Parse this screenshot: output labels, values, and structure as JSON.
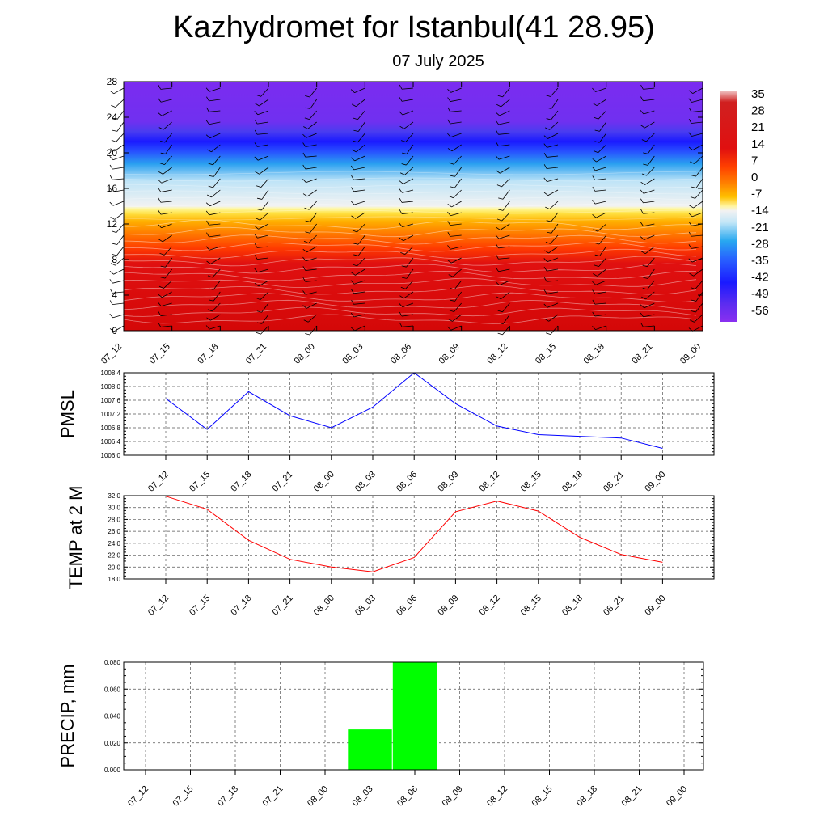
{
  "title": "Kazhydromet for Istanbul(41 28.95)",
  "subtitle": "07 July 2025",
  "time_labels": [
    "07_12",
    "07_15",
    "07_18",
    "07_21",
    "08_00",
    "08_03",
    "08_06",
    "08_09",
    "08_12",
    "08_15",
    "08_18",
    "08_21",
    "09_00"
  ],
  "colors": {
    "pmsl_line": "#0000ff",
    "temp_line": "#ff0000",
    "precip_bar": "#00ff00",
    "upper_air": "#7b2cf0",
    "cold_blue": "#1a1aff",
    "warm_red": "#e01010"
  },
  "chart_data": [
    {
      "type": "heatmap",
      "name": "cross-section",
      "yticks": [
        0,
        4,
        8,
        12,
        16,
        20,
        24,
        28
      ],
      "ylim": [
        0,
        28
      ],
      "wind_barbs": true,
      "colorbar": {
        "labels": [
          "35",
          "28",
          "21",
          "14",
          "7",
          "0",
          "-7",
          "-14",
          "-21",
          "-28",
          "-35",
          "-42",
          "-49",
          "-56"
        ],
        "placement": "right"
      }
    },
    {
      "type": "line",
      "ylabel": "PMSL",
      "categories": [
        "07_12",
        "07_15",
        "07_18",
        "07_21",
        "08_00",
        "08_03",
        "08_06",
        "08_09",
        "08_12",
        "08_15",
        "08_18",
        "08_21",
        "09_00"
      ],
      "values": [
        1007.65,
        1006.75,
        1007.85,
        1007.15,
        1006.8,
        1007.4,
        1008.4,
        1007.5,
        1006.85,
        1006.6,
        1006.55,
        1006.5,
        1006.2
      ],
      "ylim": [
        1006.0,
        1008.4
      ],
      "yticks": [
        "1006.0",
        "1006.4",
        "1006.8",
        "1007.2",
        "1007.6",
        "1008.0",
        "1008.4"
      ],
      "grid": true
    },
    {
      "type": "line",
      "ylabel": "TEMP at 2 M",
      "categories": [
        "07_12",
        "07_15",
        "07_18",
        "07_21",
        "08_00",
        "08_03",
        "08_06",
        "08_09",
        "08_12",
        "08_15",
        "08_18",
        "08_21",
        "09_00"
      ],
      "values": [
        31.9,
        29.7,
        24.5,
        21.3,
        20.0,
        19.2,
        21.6,
        29.3,
        31.1,
        29.4,
        25.0,
        22.1,
        20.8
      ],
      "ylim": [
        18.0,
        32.0
      ],
      "yticks": [
        "18.0",
        "20.0",
        "22.0",
        "24.0",
        "26.0",
        "28.0",
        "30.0",
        "32.0"
      ],
      "grid": true
    },
    {
      "type": "bar",
      "ylabel": "PRECIP, mm",
      "categories": [
        "07_12",
        "07_15",
        "07_18",
        "07_21",
        "08_00",
        "08_03",
        "08_06",
        "08_09",
        "08_12",
        "08_15",
        "08_18",
        "08_21",
        "09_00"
      ],
      "values": [
        0,
        0,
        0,
        0,
        0,
        0.03,
        0.08,
        0,
        0,
        0,
        0,
        0,
        0
      ],
      "ylim": [
        0,
        0.08
      ],
      "yticks": [
        "0.000",
        "0.020",
        "0.040",
        "0.060",
        "0.080"
      ],
      "grid": true
    }
  ]
}
